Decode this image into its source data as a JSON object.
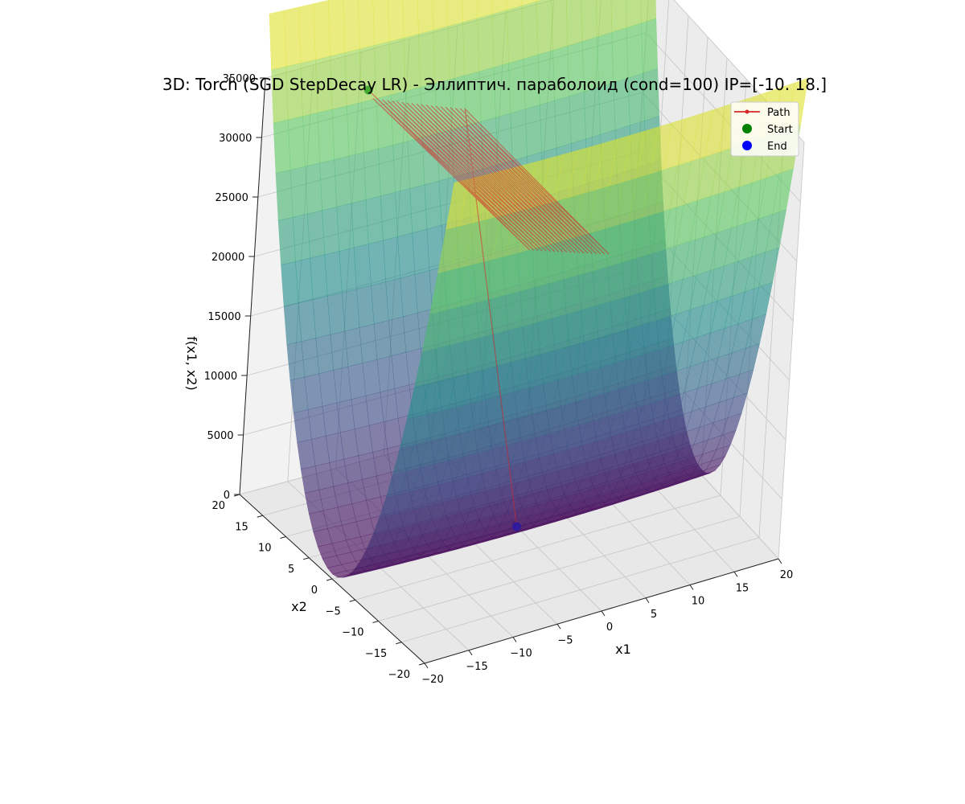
{
  "chart_data": {
    "type": "surface3d",
    "title": "3D: Torch (SGD StepDecay LR) - Эллиптич. параболоид (cond=100) IP=[-10.  18.]",
    "xlabel": "x1",
    "ylabel": "x2",
    "zlabel": "f(x1, x2)",
    "x_range": [
      -20,
      20
    ],
    "y_range": [
      -20,
      20
    ],
    "z_range": [
      0,
      35000
    ],
    "x_ticks": [
      -20,
      -15,
      -10,
      -5,
      0,
      5,
      10,
      15,
      20
    ],
    "y_ticks": [
      -20,
      -15,
      -10,
      -5,
      0,
      5,
      10,
      15,
      20
    ],
    "z_ticks": [
      0,
      5000,
      10000,
      15000,
      20000,
      25000,
      30000,
      35000
    ],
    "colormap": [
      "#440154",
      "#3b528b",
      "#21918c",
      "#5ec962",
      "#fde725"
    ],
    "surface": {
      "function": "x1^2 + 100*x2^2",
      "condition_number": 100
    },
    "grid": true,
    "legend_position": "top-right",
    "legend": [
      {
        "label": "Path",
        "color": "#d62728",
        "kind": "line-marker"
      },
      {
        "label": "Start",
        "color": "#008000",
        "kind": "marker"
      },
      {
        "label": "End",
        "color": "#0000ff",
        "kind": "marker"
      }
    ],
    "path": {
      "start": [
        -10,
        18,
        32500
      ],
      "end": [
        0.0,
        0.0,
        0
      ],
      "color": "#d62728",
      "oscillation_steps": 40,
      "x2_amplitude_start": 18,
      "x2_amplitude_end": 17.2
    }
  }
}
